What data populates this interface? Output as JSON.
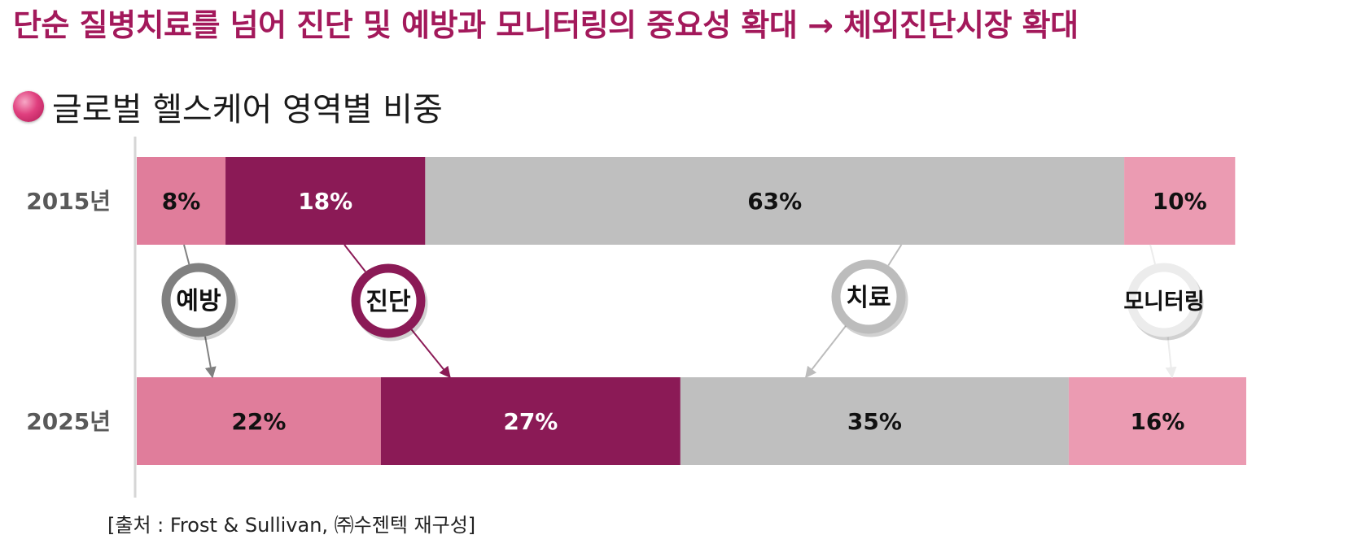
{
  "headline": {
    "text": "단순 질병치료를 넘어 진단 및 예방과 모니터링의 중요성 확대 → 체외진단시장 확대",
    "color": "#a3195b"
  },
  "subtitle": "글로벌 헬스케어 영역별 비중",
  "source": "[출처 : Frost & Sullivan, ㈜수젠텍 재구성]",
  "chart_data": {
    "type": "bar",
    "orientation": "horizontal",
    "stacked": true,
    "unit": "%",
    "xlim": [
      0,
      100
    ],
    "categories": [
      "2015년",
      "2025년"
    ],
    "series": [
      {
        "name": "예방",
        "values": [
          8,
          22
        ],
        "labels": [
          "8%",
          "22%"
        ],
        "color": "#e07d9b",
        "label_color": "#111111",
        "bubble_color": "#808080",
        "bubble_text_color": "#111111"
      },
      {
        "name": "진단",
        "values": [
          18,
          27
        ],
        "labels": [
          "18%",
          "27%"
        ],
        "color": "#8b1a56",
        "label_color": "#ffffff",
        "bubble_color": "#8b1a56",
        "bubble_text_color": "#111111"
      },
      {
        "name": "치료",
        "values": [
          63,
          35
        ],
        "labels": [
          "63%",
          "35%"
        ],
        "color": "#bfbfbf",
        "label_color": "#111111",
        "bubble_color": "#bcbcbc",
        "bubble_text_color": "#111111"
      },
      {
        "name": "모니터링",
        "values": [
          10,
          16
        ],
        "labels": [
          "10%",
          "16%"
        ],
        "color": "#eb9bb2",
        "label_color": "#111111",
        "bubble_color": "#ececec",
        "bubble_text_color": "#111111"
      }
    ],
    "legend": "none",
    "grid": false
  }
}
